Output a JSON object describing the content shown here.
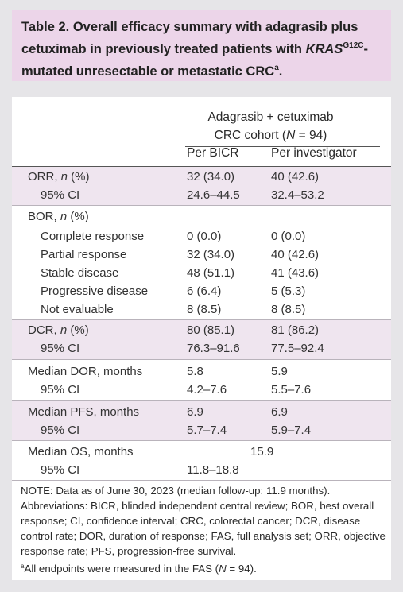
{
  "title": {
    "number": "Table 2.",
    "text_part1": "Overall efficacy summary with adagrasib plus cetuximab in previously treated patients with ",
    "gene": "KRAS",
    "gene_sup": "G12C",
    "text_part2": "-mutated unresectable or metastatic CRC",
    "footnote_mark": "a",
    "end": "."
  },
  "header": {
    "group_line1": "Adagrasib + cetuximab",
    "group_line2_pre": "CRC cohort (",
    "group_line2_n": "N",
    "group_line2_post": " = 94)",
    "col1": "Per BICR",
    "col2": "Per investigator"
  },
  "rows": [
    {
      "label": "ORR, n (%)",
      "c1": "32 (34.0)",
      "c2": "40 (42.6)"
    },
    {
      "label": "95% CI",
      "c1": "24.6–44.5",
      "c2": "32.4–53.2"
    },
    {
      "label": "BOR, n (%)",
      "c1": "",
      "c2": ""
    },
    {
      "label": "Complete response",
      "c1": "0 (0.0)",
      "c2": "0 (0.0)"
    },
    {
      "label": "Partial response",
      "c1": "32 (34.0)",
      "c2": "40 (42.6)"
    },
    {
      "label": "Stable disease",
      "c1": "48 (51.1)",
      "c2": "41 (43.6)"
    },
    {
      "label": "Progressive disease",
      "c1": "6 (6.4)",
      "c2": "5 (5.3)"
    },
    {
      "label": "Not evaluable",
      "c1": "8 (8.5)",
      "c2": "8 (8.5)"
    },
    {
      "label": "DCR, n (%)",
      "c1": "80 (85.1)",
      "c2": "81 (86.2)"
    },
    {
      "label": "95% CI",
      "c1": "76.3–91.6",
      "c2": "77.5–92.4"
    },
    {
      "label": "Median DOR, months",
      "c1": "5.8",
      "c2": "5.9"
    },
    {
      "label": "95% CI",
      "c1": "4.2–7.6",
      "c2": "5.5–7.6"
    },
    {
      "label": "Median PFS, months",
      "c1": "6.9",
      "c2": "6.9"
    },
    {
      "label": "95% CI",
      "c1": "5.7–7.4",
      "c2": "5.9–7.4"
    },
    {
      "label": "Median OS, months",
      "span": "15.9"
    },
    {
      "label": "95% CI",
      "c1": "11.8–18.8",
      "c2": ""
    }
  ],
  "notes": {
    "note": "NOTE: Data as of June 30, 2023 (median follow-up: 11.9 months).",
    "abbrev": "Abbreviations: BICR, blinded independent central review; BOR, best overall response; CI, confidence interval; CRC, colorectal cancer; DCR, disease control rate; DOR, duration of response; FAS, full analysis set; ORR, objective response rate; PFS, progression-free survival.",
    "footnote_mark": "a",
    "footnote_pre": "All endpoints were measured in the FAS (",
    "footnote_n": "N",
    "footnote_post": " = 94)."
  },
  "colors": {
    "title_band": "#ecd5e9",
    "row_band": "#efe5ef",
    "background": "#e6e5e8",
    "card": "#ffffff"
  }
}
